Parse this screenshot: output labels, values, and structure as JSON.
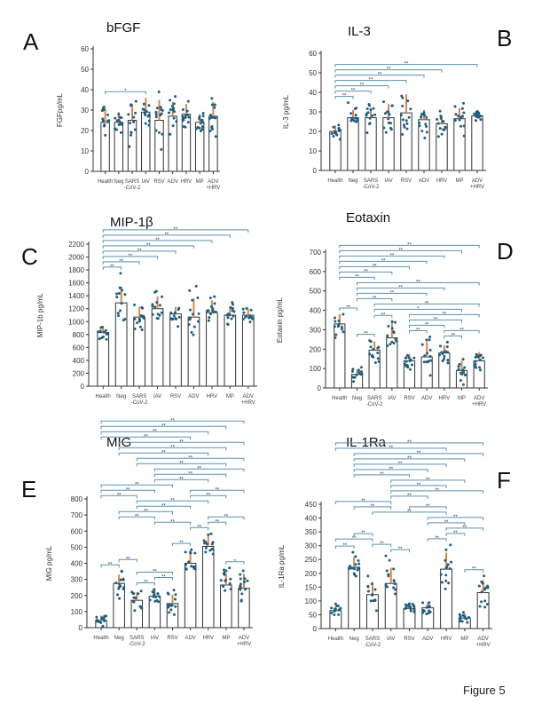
{
  "figure_label": "Figure 5",
  "colors": {
    "bar_fill": "#ffffff",
    "bar_stroke": "#333333",
    "dots": "#1d5f80",
    "error_bars": "#e0834a",
    "brackets": "#5b93ad"
  },
  "chart_data": [
    {
      "type": "bar",
      "panel": "A",
      "title": "bFGF",
      "ylabel": "FGFpg/mL",
      "categories": [
        "Health",
        "Neg",
        "SARS\n-CoV-2",
        "IAV",
        "RSV",
        "ADV",
        "HRV",
        "MP",
        "ADV\n+HRV"
      ],
      "values": [
        24,
        24,
        25,
        29,
        25,
        27,
        28,
        24,
        27
      ],
      "error_upper": [
        31,
        29,
        33,
        36,
        35,
        34,
        33,
        28,
        34
      ],
      "ylim": [
        0,
        60
      ],
      "ytick_step": 10,
      "brackets": [
        {
          "from": 0,
          "to": 3,
          "label": "*"
        }
      ]
    },
    {
      "type": "bar",
      "panel": "B",
      "title": "IL-3",
      "ylabel": "IL-3 pg/mL",
      "categories": [
        "Health",
        "Neg",
        "SARS\n-CoV-2",
        "IAV",
        "RSV",
        "ADV",
        "HRV",
        "MP",
        "ADV\n+HRV"
      ],
      "values": [
        20,
        27,
        27,
        27,
        29.5,
        26,
        24,
        26.5,
        28
      ],
      "error_upper": [
        23,
        31,
        32,
        34,
        39,
        31,
        28,
        32,
        31
      ],
      "ylim": [
        0,
        60
      ],
      "ytick_step": 10,
      "brackets": [
        {
          "from": 0,
          "to": 1,
          "label": "**"
        },
        {
          "from": 0,
          "to": 2,
          "label": "**"
        },
        {
          "from": 0,
          "to": 3,
          "label": "**"
        },
        {
          "from": 0,
          "to": 4,
          "label": "**"
        },
        {
          "from": 0,
          "to": 5,
          "label": "**"
        },
        {
          "from": 0,
          "to": 6,
          "label": "**"
        },
        {
          "from": 0,
          "to": 8,
          "label": "**"
        }
      ]
    },
    {
      "type": "bar",
      "panel": "C",
      "title": "MIP-1β",
      "ylabel": "MIP-1b pg/mL",
      "categories": [
        "Health",
        "Neg",
        "SARS\n-CoV-2",
        "IAV",
        "RSV",
        "ADV",
        "HRV",
        "MP",
        "ADV\n+HRV"
      ],
      "values": [
        830,
        1290,
        1070,
        1200,
        1120,
        1070,
        1140,
        1100,
        1100
      ],
      "error_upper": [
        900,
        1540,
        1230,
        1390,
        1230,
        1360,
        1330,
        1240,
        1200
      ],
      "ylim": [
        0,
        2200
      ],
      "ytick_step": 200,
      "brackets": [
        {
          "from": 0,
          "to": 1,
          "label": "**"
        },
        {
          "from": 0,
          "to": 2,
          "label": "**"
        },
        {
          "from": 0,
          "to": 3,
          "label": "**"
        },
        {
          "from": 0,
          "to": 4,
          "label": "**"
        },
        {
          "from": 0,
          "to": 5,
          "label": "**"
        },
        {
          "from": 0,
          "to": 6,
          "label": "**"
        },
        {
          "from": 0,
          "to": 7,
          "label": "**"
        },
        {
          "from": 0,
          "to": 8,
          "label": "**"
        }
      ]
    },
    {
      "type": "bar",
      "panel": "D",
      "title": "Eotaxin",
      "ylabel": "Eotaxin pg/mL",
      "categories": [
        "Health",
        "Neg",
        "SARS\n-CoV-2",
        "IAV",
        "RSV",
        "ADV",
        "HRV",
        "MP",
        "ADV\n+HRV"
      ],
      "values": [
        330,
        70,
        195,
        258,
        140,
        160,
        180,
        90,
        140
      ],
      "error_upper": [
        380,
        95,
        240,
        340,
        175,
        240,
        220,
        140,
        185
      ],
      "ylim": [
        0,
        700
      ],
      "ytick_step": 100,
      "brackets": [
        {
          "from": 1,
          "to": 2,
          "label": "**"
        },
        {
          "from": 4,
          "to": 5,
          "label": "**"
        },
        {
          "from": 6,
          "to": 7,
          "label": "**"
        },
        {
          "from": 6,
          "to": 8,
          "label": "**"
        },
        {
          "from": 4,
          "to": 6,
          "label": "**"
        },
        {
          "from": 4,
          "to": 7,
          "label": "**"
        },
        {
          "from": 2,
          "to": 3,
          "label": "**"
        },
        {
          "from": 4,
          "to": 8,
          "label": "**"
        },
        {
          "from": 2,
          "to": 7,
          "label": "*"
        },
        {
          "from": 2,
          "to": 8,
          "label": "**"
        },
        {
          "from": 0,
          "to": 1,
          "label": "**"
        },
        {
          "from": 1,
          "to": 3,
          "label": "**"
        },
        {
          "from": 1,
          "to": 5,
          "label": "**"
        },
        {
          "from": 1,
          "to": 6,
          "label": "**"
        },
        {
          "from": 1,
          "to": 8,
          "label": "**"
        },
        {
          "from": 0,
          "to": 2,
          "label": "**"
        },
        {
          "from": 0,
          "to": 3,
          "label": "**"
        },
        {
          "from": 0,
          "to": 4,
          "label": "**"
        },
        {
          "from": 0,
          "to": 5,
          "label": "**"
        },
        {
          "from": 0,
          "to": 6,
          "label": "**"
        },
        {
          "from": 0,
          "to": 7,
          "label": "**"
        },
        {
          "from": 0,
          "to": 8,
          "label": "**"
        }
      ]
    },
    {
      "type": "bar",
      "panel": "E",
      "title": "MIG",
      "ylabel": "MIG pg/mL",
      "categories": [
        "Health",
        "Neg",
        "SARS\n-CoV-2",
        "IAV",
        "RSV",
        "ADV",
        "HRV",
        "MP",
        "ADV\n+HRV"
      ],
      "values": [
        45,
        275,
        170,
        195,
        150,
        400,
        505,
        265,
        245
      ],
      "error_upper": [
        75,
        330,
        220,
        240,
        205,
        480,
        575,
        335,
        335
      ],
      "ylim": [
        0,
        800
      ],
      "ytick_step": 100,
      "brackets": [
        {
          "from": 0,
          "to": 1,
          "label": "**"
        },
        {
          "from": 2,
          "to": 3,
          "label": "**"
        },
        {
          "from": 3,
          "to": 4,
          "label": "**"
        },
        {
          "from": 7,
          "to": 8,
          "label": "*"
        },
        {
          "from": 2,
          "to": 4,
          "label": "**"
        },
        {
          "from": 4,
          "to": 5,
          "label": "**"
        },
        {
          "from": 5,
          "to": 6,
          "label": "**"
        },
        {
          "from": 1,
          "to": 2,
          "label": "**"
        },
        {
          "from": 6,
          "to": 7,
          "label": "**"
        },
        {
          "from": 3,
          "to": 5,
          "label": "**"
        },
        {
          "from": 6,
          "to": 8,
          "label": "**"
        },
        {
          "from": 1,
          "to": 3,
          "label": "**"
        },
        {
          "from": 1,
          "to": 4,
          "label": "**"
        },
        {
          "from": 2,
          "to": 5,
          "label": "**"
        },
        {
          "from": 2,
          "to": 6,
          "label": "**"
        },
        {
          "from": 5,
          "to": 7,
          "label": "**"
        },
        {
          "from": 5,
          "to": 8,
          "label": "**"
        },
        {
          "from": 0,
          "to": 2,
          "label": "**"
        },
        {
          "from": 0,
          "to": 3,
          "label": "**"
        },
        {
          "from": 0,
          "to": 4,
          "label": "**"
        },
        {
          "from": 3,
          "to": 6,
          "label": "**"
        },
        {
          "from": 3,
          "to": 7,
          "label": "**"
        },
        {
          "from": 3,
          "to": 8,
          "label": "**"
        },
        {
          "from": 2,
          "to": 7,
          "label": "**"
        },
        {
          "from": 2,
          "to": 8,
          "label": "**"
        },
        {
          "from": 1,
          "to": 6,
          "label": "**"
        },
        {
          "from": 1,
          "to": 7,
          "label": "**"
        },
        {
          "from": 1,
          "to": 8,
          "label": "**"
        },
        {
          "from": 0,
          "to": 5,
          "label": "**"
        },
        {
          "from": 0,
          "to": 6,
          "label": "**"
        },
        {
          "from": 0,
          "to": 7,
          "label": "**"
        },
        {
          "from": 0,
          "to": 8,
          "label": "**"
        }
      ]
    },
    {
      "type": "bar",
      "panel": "F",
      "title": "IL-1Ra",
      "ylabel": "IL-1Ra pg/mL",
      "categories": [
        "Health",
        "Neg",
        "SARS\n-CoV-2",
        "IAV",
        "RSV",
        "ADV",
        "HRV",
        "MP",
        "ADV\n+HRV"
      ],
      "values": [
        65,
        222,
        123,
        163,
        73,
        75,
        215,
        38,
        130
      ],
      "error_upper": [
        80,
        260,
        168,
        220,
        88,
        95,
        275,
        55,
        175
      ],
      "ylim": [
        0,
        450
      ],
      "ytick_step": 50,
      "brackets": [
        {
          "from": 3,
          "to": 4,
          "label": "**"
        },
        {
          "from": 2,
          "to": 3,
          "label": "**"
        },
        {
          "from": 5,
          "to": 6,
          "label": "**"
        },
        {
          "from": 7,
          "to": 8,
          "label": "**"
        },
        {
          "from": 0,
          "to": 1,
          "label": "**"
        },
        {
          "from": 6,
          "to": 7,
          "label": "**"
        },
        {
          "from": 6,
          "to": 8,
          "label": "**"
        },
        {
          "from": 0,
          "to": 2,
          "label": "**"
        },
        {
          "from": 5,
          "to": 7,
          "label": "**"
        },
        {
          "from": 5,
          "to": 8,
          "label": "**"
        },
        {
          "from": 1,
          "to": 2,
          "label": "**"
        },
        {
          "from": 2,
          "to": 6,
          "label": "**"
        },
        {
          "from": 1,
          "to": 3,
          "label": "**"
        },
        {
          "from": 0,
          "to": 3,
          "label": "**"
        },
        {
          "from": 4,
          "to": 6,
          "label": "**"
        },
        {
          "from": 3,
          "to": 5,
          "label": "**"
        },
        {
          "from": 3,
          "to": 8,
          "label": "**"
        },
        {
          "from": 3,
          "to": 6,
          "label": "**"
        },
        {
          "from": 3,
          "to": 7,
          "label": "**"
        },
        {
          "from": 1,
          "to": 4,
          "label": "**"
        },
        {
          "from": 1,
          "to": 5,
          "label": "**"
        },
        {
          "from": 1,
          "to": 6,
          "label": "**"
        },
        {
          "from": 1,
          "to": 7,
          "label": "**"
        },
        {
          "from": 1,
          "to": 8,
          "label": "**"
        },
        {
          "from": 0,
          "to": 6,
          "label": "**"
        },
        {
          "from": 0,
          "to": 8,
          "label": "**"
        }
      ]
    }
  ]
}
